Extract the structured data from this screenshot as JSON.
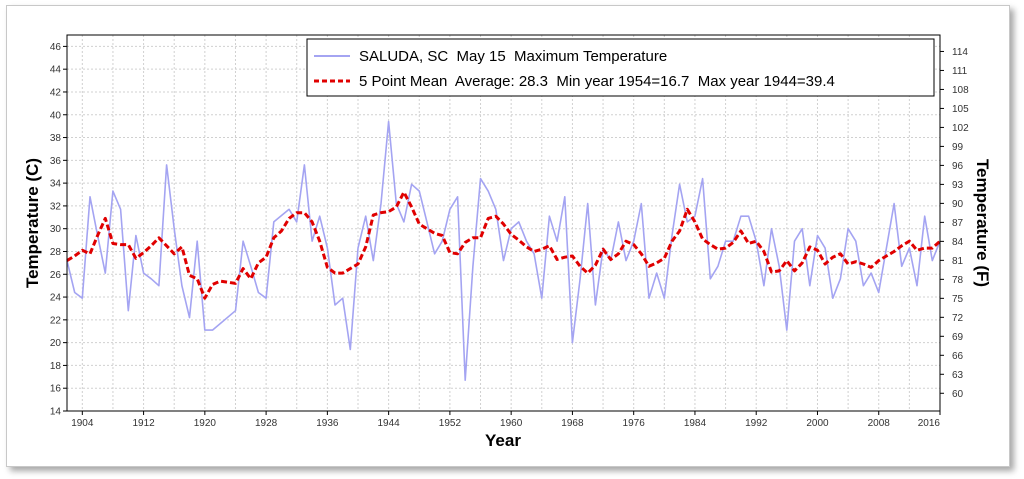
{
  "chart_data": {
    "type": "line",
    "xlabel": "Year",
    "ylabel": "Temperature (C)",
    "y2label": "Temperature (F)",
    "xlim": [
      1902,
      2016
    ],
    "ylim": [
      14,
      47
    ],
    "y2lim": [
      57.2,
      116.6
    ],
    "x_ticks": [
      1904,
      1912,
      1920,
      1928,
      1936,
      1944,
      1952,
      1960,
      1968,
      1976,
      1984,
      1992,
      2000,
      2008,
      2016
    ],
    "y_ticks": [
      14,
      16,
      18,
      20,
      22,
      24,
      26,
      28,
      30,
      32,
      34,
      36,
      38,
      40,
      42,
      44,
      46
    ],
    "y2_ticks": [
      60,
      63,
      66,
      69,
      72,
      75,
      78,
      81,
      84,
      87,
      90,
      93,
      96,
      99,
      102,
      105,
      108,
      111,
      114
    ],
    "grid": true,
    "legend_position": "top-right",
    "series": [
      {
        "name": "SALUDA, SC  May 15  Maximum Temperature",
        "style": "solid",
        "color": "#a4a4f2",
        "x": [
          1902,
          1903,
          1904,
          1905,
          1906,
          1907,
          1908,
          1909,
          1910,
          1911,
          1912,
          1913,
          1914,
          1915,
          1916,
          1917,
          1918,
          1919,
          1920,
          1921,
          1924,
          1925,
          1926,
          1927,
          1928,
          1929,
          1931,
          1932,
          1933,
          1934,
          1935,
          1936,
          1937,
          1938,
          1939,
          1940,
          1941,
          1942,
          1943,
          1944,
          1945,
          1946,
          1947,
          1948,
          1949,
          1950,
          1951,
          1952,
          1953,
          1954,
          1955,
          1956,
          1957,
          1958,
          1959,
          1960,
          1961,
          1962,
          1963,
          1964,
          1965,
          1966,
          1967,
          1968,
          1969,
          1970,
          1971,
          1972,
          1973,
          1974,
          1975,
          1976,
          1977,
          1978,
          1979,
          1980,
          1981,
          1982,
          1983,
          1984,
          1985,
          1986,
          1987,
          1988,
          1989,
          1990,
          1991,
          1992,
          1993,
          1994,
          1995,
          1996,
          1997,
          1998,
          1999,
          2000,
          2001,
          2002,
          2003,
          2004,
          2005,
          2006,
          2007,
          2008,
          2009,
          2010,
          2011,
          2012,
          2013,
          2014,
          2015,
          2016
        ],
        "y": [
          27.2,
          24.4,
          23.9,
          32.8,
          29.4,
          26.1,
          33.3,
          31.7,
          22.8,
          29.4,
          26.1,
          25.6,
          25.0,
          35.6,
          30.0,
          25.0,
          22.2,
          28.9,
          21.1,
          21.1,
          22.8,
          28.9,
          26.7,
          24.4,
          23.9,
          30.6,
          31.7,
          30.6,
          35.6,
          28.9,
          31.1,
          28.3,
          23.3,
          23.9,
          19.4,
          28.3,
          31.1,
          27.2,
          32.2,
          39.4,
          32.2,
          30.6,
          33.9,
          33.3,
          30.6,
          27.8,
          28.9,
          31.7,
          32.8,
          16.7,
          26.7,
          34.4,
          33.3,
          31.7,
          27.2,
          30.0,
          30.6,
          28.9,
          27.8,
          23.9,
          31.1,
          28.9,
          32.8,
          20.0,
          25.6,
          32.2,
          23.3,
          28.3,
          27.2,
          30.6,
          27.2,
          28.9,
          32.2,
          23.9,
          26.1,
          23.9,
          29.4,
          33.9,
          30.6,
          31.1,
          34.4,
          25.6,
          26.7,
          28.9,
          28.9,
          31.1,
          31.1,
          28.9,
          25.0,
          30.0,
          26.7,
          21.1,
          28.9,
          30.0,
          25.0,
          29.4,
          28.3,
          23.9,
          25.6,
          30.0,
          28.9,
          25.0,
          26.1,
          24.4,
          28.3,
          32.2,
          26.7,
          28.3,
          25.0,
          31.1,
          27.2,
          28.9
        ]
      },
      {
        "name": "5 Point Mean  Average: 28.3  Min year 1954=16.7  Max year 1944=39.4",
        "style": "dashed",
        "color": "#e00000",
        "x": [
          1902,
          1903,
          1904,
          1905,
          1906,
          1907,
          1908,
          1909,
          1910,
          1911,
          1912,
          1913,
          1914,
          1915,
          1916,
          1917,
          1918,
          1919,
          1920,
          1921,
          1922,
          1924,
          1925,
          1926,
          1927,
          1928,
          1929,
          1930,
          1931,
          1932,
          1933,
          1934,
          1935,
          1936,
          1937,
          1938,
          1939,
          1940,
          1941,
          1942,
          1943,
          1944,
          1945,
          1946,
          1947,
          1948,
          1949,
          1950,
          1951,
          1952,
          1953,
          1954,
          1955,
          1956,
          1957,
          1958,
          1959,
          1960,
          1961,
          1962,
          1963,
          1964,
          1965,
          1966,
          1967,
          1968,
          1969,
          1970,
          1971,
          1972,
          1973,
          1974,
          1975,
          1976,
          1977,
          1978,
          1979,
          1980,
          1981,
          1982,
          1983,
          1984,
          1985,
          1986,
          1987,
          1988,
          1989,
          1990,
          1991,
          1992,
          1993,
          1994,
          1995,
          1996,
          1997,
          1998,
          1999,
          2000,
          2001,
          2002,
          2003,
          2004,
          2005,
          2006,
          2007,
          2008,
          2009,
          2010,
          2011,
          2012,
          2013,
          2014,
          2015,
          2016
        ],
        "y": [
          27.2,
          27.6,
          28.1,
          27.8,
          29.4,
          30.9,
          28.7,
          28.6,
          28.6,
          27.4,
          27.9,
          28.5,
          29.2,
          28.5,
          27.8,
          28.4,
          25.9,
          25.6,
          23.9,
          25.1,
          25.4,
          25.2,
          26.5,
          25.6,
          27.0,
          27.5,
          29.2,
          29.8,
          30.9,
          31.4,
          31.4,
          30.6,
          28.9,
          26.6,
          26.1,
          26.1,
          26.5,
          26.9,
          28.4,
          31.2,
          31.4,
          31.5,
          31.9,
          33.2,
          31.9,
          30.4,
          30.0,
          29.6,
          29.4,
          27.9,
          27.8,
          28.8,
          29.2,
          29.2,
          30.9,
          31.1,
          30.4,
          29.5,
          29.0,
          28.4,
          28.0,
          28.2,
          28.5,
          27.3,
          27.5,
          27.6,
          26.7,
          26.1,
          26.8,
          28.2,
          27.3,
          27.8,
          28.9,
          28.6,
          27.8,
          26.7,
          27.0,
          27.4,
          28.9,
          29.8,
          31.7,
          30.6,
          29.1,
          28.6,
          28.2,
          28.3,
          28.8,
          29.8,
          28.7,
          28.9,
          28.0,
          26.2,
          26.3,
          27.2,
          26.3,
          27.0,
          28.4,
          28.1,
          26.9,
          27.5,
          27.8,
          26.9,
          27.1,
          26.9,
          26.6,
          27.2,
          27.6,
          28.0,
          28.5,
          28.9,
          28.1,
          28.3,
          28.3,
          28.9
        ]
      }
    ]
  }
}
